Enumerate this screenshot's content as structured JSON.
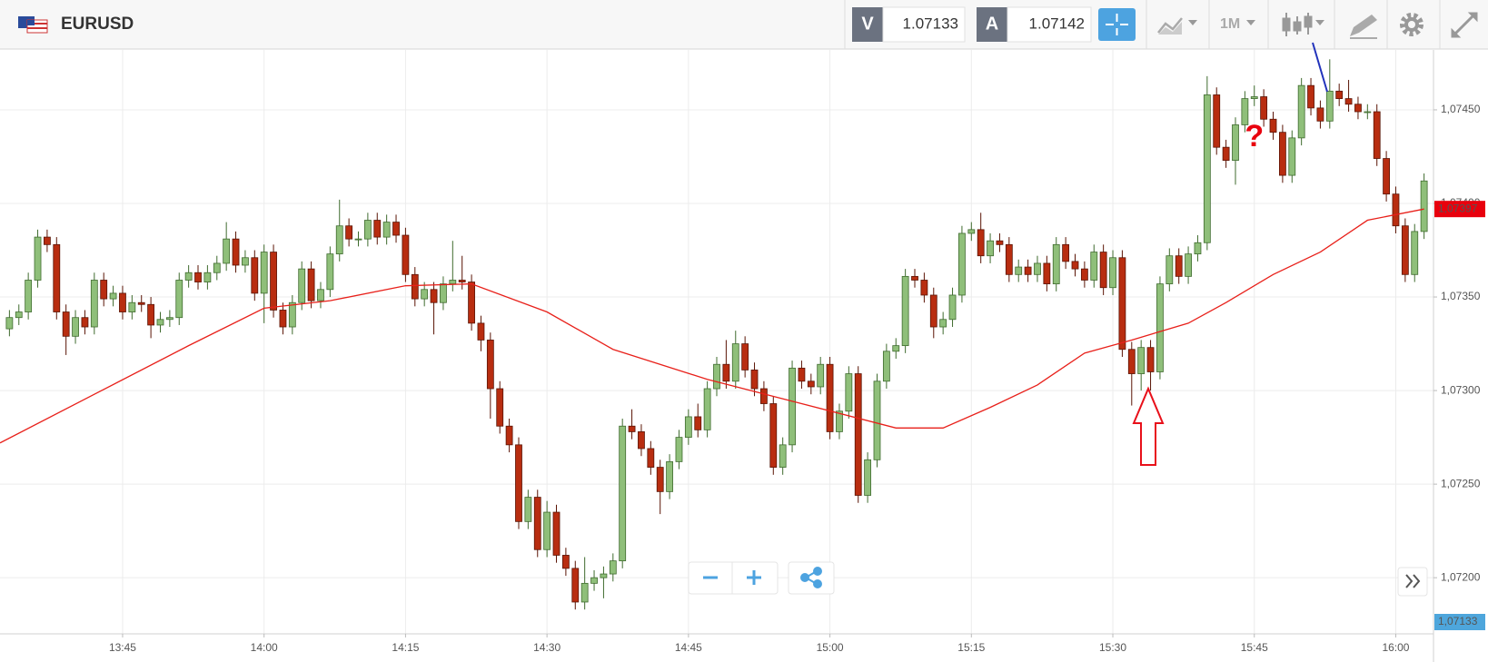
{
  "header": {
    "symbol": "EURUSD",
    "bid_label": "V",
    "bid": "1.07133",
    "ask_label": "A",
    "ask": "1.07142",
    "timeframe": "1M"
  },
  "chart_data": {
    "type": "candlestick",
    "x": [
      "13:33",
      "13:34",
      "13:35",
      "13:36",
      "13:37",
      "13:38",
      "13:39",
      "13:40",
      "13:41",
      "13:42",
      "13:43",
      "13:44",
      "13:45",
      "13:46",
      "13:47",
      "13:48",
      "13:49",
      "13:50",
      "13:51",
      "13:52",
      "13:53",
      "13:54",
      "13:55",
      "13:56",
      "13:57",
      "13:58",
      "13:59",
      "14:00",
      "14:01",
      "14:02",
      "14:03",
      "14:04",
      "14:05",
      "14:06",
      "14:07",
      "14:08",
      "14:09",
      "14:10",
      "14:11",
      "14:12",
      "14:13",
      "14:14",
      "14:15",
      "14:16",
      "14:17",
      "14:18",
      "14:19",
      "14:20",
      "14:21",
      "14:22",
      "14:23",
      "14:24",
      "14:25",
      "14:26",
      "14:27",
      "14:28",
      "14:29",
      "14:30",
      "14:31",
      "14:32",
      "14:33",
      "14:34",
      "14:35",
      "14:36",
      "14:37",
      "14:38",
      "14:39",
      "14:40",
      "14:41",
      "14:42",
      "14:43",
      "14:44",
      "14:45",
      "14:46",
      "14:47",
      "14:48",
      "14:49",
      "14:50",
      "14:51",
      "14:52",
      "14:53",
      "14:54",
      "14:55",
      "14:56",
      "14:57",
      "14:58",
      "14:59",
      "15:00",
      "15:01",
      "15:02",
      "15:03",
      "15:04",
      "15:05",
      "15:06",
      "15:07",
      "15:08",
      "15:09",
      "15:10",
      "15:11",
      "15:12",
      "15:13",
      "15:14",
      "15:15",
      "15:16",
      "15:17",
      "15:18",
      "15:19",
      "15:20",
      "15:21",
      "15:22",
      "15:23",
      "15:24",
      "15:25",
      "15:26",
      "15:27",
      "15:28",
      "15:29",
      "15:30",
      "15:31",
      "15:32",
      "15:33",
      "15:34",
      "15:35",
      "15:36",
      "15:37",
      "15:38",
      "15:39",
      "15:40",
      "15:41",
      "15:42",
      "15:43",
      "15:44",
      "15:45",
      "15:46",
      "15:47",
      "15:48",
      "15:49",
      "15:50",
      "15:51",
      "15:52",
      "15:53",
      "15:54",
      "15:55",
      "15:56",
      "15:57",
      "15:58",
      "15:59",
      "16:00",
      "16:01",
      "16:02",
      "16:03"
    ],
    "open": [
      1.07333,
      1.07339,
      1.07342,
      1.07359,
      1.07382,
      1.07378,
      1.07342,
      1.07329,
      1.07339,
      1.07334,
      1.07359,
      1.07349,
      1.07352,
      1.07342,
      1.07347,
      1.07346,
      1.07335,
      1.07338,
      1.07339,
      1.07359,
      1.07363,
      1.07358,
      1.07363,
      1.07368,
      1.07381,
      1.07367,
      1.07371,
      1.07352,
      1.07374,
      1.07343,
      1.07334,
      1.07347,
      1.07365,
      1.07348,
      1.07354,
      1.07373,
      1.07388,
      1.07381,
      1.07381,
      1.07391,
      1.07382,
      1.0739,
      1.07383,
      1.07362,
      1.07349,
      1.07354,
      1.07347,
      1.07357,
      1.07359,
      1.07358,
      1.07336,
      1.07327,
      1.07301,
      1.07281,
      1.07271,
      1.0723,
      1.07243,
      1.07215,
      1.07235,
      1.07212,
      1.07205,
      1.07187,
      1.07197,
      1.072,
      1.07202,
      1.07209,
      1.07281,
      1.07278,
      1.07269,
      1.07259,
      1.07246,
      1.07262,
      1.07275,
      1.07286,
      1.07279,
      1.07301,
      1.07314,
      1.07305,
      1.07325,
      1.07311,
      1.07301,
      1.07293,
      1.07259,
      1.07271,
      1.07312,
      1.07305,
      1.07302,
      1.07314,
      1.07278,
      1.07289,
      1.07309,
      1.07244,
      1.07263,
      1.07305,
      1.07321,
      1.07324,
      1.07361,
      1.07359,
      1.07351,
      1.07334,
      1.07338,
      1.07351,
      1.07384,
      1.07386,
      1.07372,
      1.0738,
      1.07378,
      1.07362,
      1.07366,
      1.07362,
      1.07368,
      1.07357,
      1.07378,
      1.07369,
      1.07365,
      1.07359,
      1.07374,
      1.07355,
      1.07371,
      1.07322,
      1.07309,
      1.07323,
      1.0731,
      1.07357,
      1.07372,
      1.07361,
      1.07373,
      1.07379,
      1.07458,
      1.0743,
      1.07423,
      1.07442,
      1.07456,
      1.07457,
      1.07445,
      1.07438,
      1.07415,
      1.07435,
      1.07463,
      1.07451,
      1.07444,
      1.0746,
      1.07456,
      1.07453,
      1.07449,
      1.07449,
      1.07424,
      1.07405,
      1.07388,
      1.07362,
      1.07385
    ],
    "high": [
      1.07343,
      1.07346,
      1.07363,
      1.07386,
      1.07386,
      1.07382,
      1.07346,
      1.07343,
      1.07343,
      1.07363,
      1.07363,
      1.07356,
      1.07356,
      1.07351,
      1.07351,
      1.0735,
      1.07342,
      1.07343,
      1.07363,
      1.07367,
      1.07367,
      1.07367,
      1.07372,
      1.0739,
      1.07385,
      1.07375,
      1.07375,
      1.07378,
      1.07378,
      1.07347,
      1.07351,
      1.07369,
      1.07369,
      1.07358,
      1.07377,
      1.07402,
      1.07392,
      1.07385,
      1.07395,
      1.07395,
      1.07394,
      1.07394,
      1.07387,
      1.07366,
      1.07358,
      1.07358,
      1.07361,
      1.0738,
      1.07372,
      1.07362,
      1.0734,
      1.07331,
      1.07305,
      1.07285,
      1.07275,
      1.07247,
      1.07247,
      1.07241,
      1.07239,
      1.07216,
      1.07209,
      1.07211,
      1.07204,
      1.07206,
      1.07213,
      1.07285,
      1.0729,
      1.07282,
      1.07273,
      1.07263,
      1.07266,
      1.07279,
      1.0729,
      1.07293,
      1.07305,
      1.07318,
      1.07327,
      1.07332,
      1.07329,
      1.07315,
      1.07305,
      1.07297,
      1.07275,
      1.07316,
      1.07316,
      1.07309,
      1.07318,
      1.07318,
      1.07293,
      1.07313,
      1.07313,
      1.07267,
      1.07309,
      1.07325,
      1.07328,
      1.07365,
      1.07365,
      1.07363,
      1.07355,
      1.07342,
      1.07355,
      1.07388,
      1.0739,
      1.07395,
      1.07384,
      1.07384,
      1.07382,
      1.0737,
      1.0737,
      1.07372,
      1.07372,
      1.07382,
      1.07382,
      1.07373,
      1.07369,
      1.07378,
      1.07378,
      1.07375,
      1.07375,
      1.07326,
      1.07327,
      1.07327,
      1.07361,
      1.07376,
      1.07376,
      1.07377,
      1.07383,
      1.07468,
      1.07462,
      1.07434,
      1.07446,
      1.0746,
      1.07463,
      1.07461,
      1.07449,
      1.07442,
      1.07439,
      1.07467,
      1.07467,
      1.07455,
      1.07477,
      1.07464,
      1.07466,
      1.07457,
      1.07453,
      1.07453,
      1.07428,
      1.07409,
      1.07392,
      1.07389,
      1.07416
    ],
    "low": [
      1.07329,
      1.07335,
      1.07338,
      1.07355,
      1.07374,
      1.07338,
      1.07319,
      1.07325,
      1.0733,
      1.0733,
      1.07345,
      1.07345,
      1.07338,
      1.07338,
      1.07342,
      1.07328,
      1.07331,
      1.07334,
      1.07335,
      1.07355,
      1.07354,
      1.07354,
      1.07359,
      1.07364,
      1.07363,
      1.07363,
      1.07348,
      1.07336,
      1.07339,
      1.0733,
      1.0733,
      1.07343,
      1.07344,
      1.07344,
      1.0735,
      1.07369,
      1.07377,
      1.07377,
      1.07377,
      1.07378,
      1.07378,
      1.07379,
      1.07358,
      1.07345,
      1.07345,
      1.0733,
      1.07343,
      1.07353,
      1.07354,
      1.07332,
      1.07321,
      1.07285,
      1.07277,
      1.07267,
      1.07226,
      1.07226,
      1.07211,
      1.07211,
      1.07208,
      1.07201,
      1.07183,
      1.07183,
      1.07193,
      1.07189,
      1.07198,
      1.07205,
      1.07274,
      1.07265,
      1.07255,
      1.07234,
      1.07242,
      1.07258,
      1.07271,
      1.07275,
      1.07275,
      1.07297,
      1.07301,
      1.07301,
      1.07307,
      1.07297,
      1.07289,
      1.07255,
      1.07255,
      1.07267,
      1.07301,
      1.07298,
      1.07298,
      1.07274,
      1.07274,
      1.07285,
      1.0724,
      1.0724,
      1.07259,
      1.07301,
      1.07317,
      1.0732,
      1.07355,
      1.07347,
      1.07328,
      1.0733,
      1.07334,
      1.07347,
      1.0738,
      1.07368,
      1.07368,
      1.07374,
      1.07358,
      1.07358,
      1.07358,
      1.07358,
      1.07353,
      1.07353,
      1.07365,
      1.07361,
      1.07355,
      1.07355,
      1.07351,
      1.07351,
      1.07318,
      1.07292,
      1.073,
      1.073,
      1.07306,
      1.07353,
      1.07357,
      1.07357,
      1.07369,
      1.07375,
      1.07426,
      1.07419,
      1.0741,
      1.07438,
      1.07452,
      1.07441,
      1.07434,
      1.07411,
      1.07411,
      1.07431,
      1.07447,
      1.0744,
      1.0744,
      1.07452,
      1.07449,
      1.07445,
      1.07445,
      1.0742,
      1.07401,
      1.07384,
      1.07358,
      1.07358,
      1.07381
    ],
    "close": [
      1.07339,
      1.07342,
      1.07359,
      1.07382,
      1.07378,
      1.07342,
      1.07329,
      1.07339,
      1.07334,
      1.07359,
      1.07349,
      1.07352,
      1.07342,
      1.07347,
      1.07346,
      1.07335,
      1.07338,
      1.07339,
      1.07359,
      1.07363,
      1.07358,
      1.07363,
      1.07368,
      1.07381,
      1.07367,
      1.07371,
      1.07352,
      1.07374,
      1.07343,
      1.07334,
      1.07347,
      1.07365,
      1.07348,
      1.07354,
      1.07373,
      1.07388,
      1.07381,
      1.07381,
      1.07391,
      1.07382,
      1.0739,
      1.07383,
      1.07362,
      1.07349,
      1.07354,
      1.07347,
      1.07357,
      1.07359,
      1.07358,
      1.07336,
      1.07327,
      1.07301,
      1.07281,
      1.07271,
      1.0723,
      1.07243,
      1.07215,
      1.07235,
      1.07212,
      1.07205,
      1.07187,
      1.07197,
      1.072,
      1.07202,
      1.07209,
      1.07281,
      1.07278,
      1.07269,
      1.07259,
      1.07246,
      1.07262,
      1.07275,
      1.07286,
      1.07279,
      1.07301,
      1.07314,
      1.07305,
      1.07325,
      1.07311,
      1.07301,
      1.07293,
      1.07259,
      1.07271,
      1.07312,
      1.07305,
      1.07302,
      1.07314,
      1.07278,
      1.07289,
      1.07309,
      1.07244,
      1.07263,
      1.07305,
      1.07321,
      1.07324,
      1.07361,
      1.07359,
      1.07351,
      1.07334,
      1.07338,
      1.07351,
      1.07384,
      1.07386,
      1.07372,
      1.0738,
      1.07378,
      1.07362,
      1.07366,
      1.07362,
      1.07368,
      1.07357,
      1.07378,
      1.07369,
      1.07365,
      1.07359,
      1.07374,
      1.07355,
      1.07371,
      1.07322,
      1.07309,
      1.07323,
      1.0731,
      1.07357,
      1.07372,
      1.07361,
      1.07373,
      1.07379,
      1.07458,
      1.0743,
      1.07423,
      1.07442,
      1.07456,
      1.07457,
      1.07445,
      1.07438,
      1.07415,
      1.07435,
      1.07463,
      1.07451,
      1.07444,
      1.0746,
      1.07456,
      1.07453,
      1.07449,
      1.07449,
      1.07424,
      1.07405,
      1.07388,
      1.07362,
      1.07385,
      1.07412
    ],
    "up_color": "#8fbf7a",
    "down_color": "#b82d10",
    "moving_average": {
      "color": "#e8201a",
      "x": [
        "13:32",
        "13:42",
        "13:52",
        "14:00",
        "14:07",
        "14:15",
        "14:22",
        "14:30",
        "14:37",
        "14:47",
        "14:57",
        "15:07",
        "15:12",
        "15:17",
        "15:22",
        "15:27",
        "15:32",
        "15:38",
        "15:42",
        "15:47",
        "15:52",
        "15:57",
        "16:03"
      ],
      "values": [
        1.07272,
        1.07298,
        1.07324,
        1.07344,
        1.07348,
        1.07356,
        1.07357,
        1.07342,
        1.07322,
        1.07306,
        1.07293,
        1.0728,
        1.0728,
        1.07291,
        1.07303,
        1.0732,
        1.07327,
        1.07336,
        1.07347,
        1.07362,
        1.07374,
        1.07391,
        1.07397
      ]
    },
    "price_tags": [
      {
        "value": 1.07397,
        "label": "1,07397",
        "color": "#e8000d"
      },
      {
        "value": 1.07133,
        "label": "1,07133",
        "color": "#4ea6dc"
      }
    ],
    "annotations": [
      {
        "text": "?",
        "x": "15:45",
        "y": 1.07435,
        "color": "#e8000d"
      }
    ],
    "xlim": [
      "13:32",
      "16:04"
    ],
    "xticks": [
      "13:45",
      "14:00",
      "14:15",
      "14:30",
      "14:45",
      "15:00",
      "15:15",
      "15:30",
      "15:45",
      "16:00"
    ],
    "ylim": [
      1.0717,
      1.07482
    ],
    "yticks": [
      {
        "value": 1.072,
        "label": "1,07200"
      },
      {
        "value": 1.0725,
        "label": "1,07250"
      },
      {
        "value": 1.073,
        "label": "1,07300"
      },
      {
        "value": 1.0735,
        "label": "1,07350"
      },
      {
        "value": 1.074,
        "label": "1,07400"
      },
      {
        "value": 1.0745,
        "label": "1,07450"
      }
    ],
    "grid": true
  }
}
